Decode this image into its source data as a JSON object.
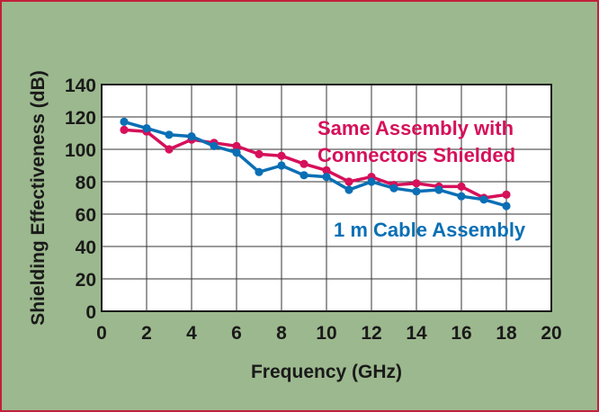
{
  "chart_data": {
    "type": "line",
    "xlabel": "Frequency (GHz)",
    "ylabel": "Shielding Effectiveness (dB)",
    "xlim": [
      0,
      20
    ],
    "ylim": [
      0,
      140
    ],
    "xticks": [
      0,
      2,
      4,
      6,
      8,
      10,
      12,
      14,
      16,
      18,
      20
    ],
    "yticks": [
      0,
      20,
      40,
      60,
      80,
      100,
      120,
      140
    ],
    "grid": true,
    "legend": "none",
    "series": [
      {
        "name": "Same Assembly with Connectors Shielded",
        "color": "#d6105a",
        "x": [
          1,
          2,
          3,
          4,
          5,
          6,
          7,
          8,
          9,
          10,
          11,
          12,
          13,
          14,
          15,
          16,
          17,
          18
        ],
        "y": [
          112,
          111,
          100,
          106,
          104,
          102,
          97,
          96,
          91,
          87,
          80,
          83,
          78,
          79,
          77,
          77,
          70,
          72
        ]
      },
      {
        "name": "1 m Cable Assembly",
        "color": "#0a6fb5",
        "x": [
          1,
          2,
          3,
          4,
          5,
          6,
          7,
          8,
          9,
          10,
          11,
          12,
          13,
          14,
          15,
          16,
          17,
          18
        ],
        "y": [
          117,
          113,
          109,
          108,
          102,
          98,
          86,
          90,
          84,
          83,
          75,
          80,
          76,
          74,
          75,
          71,
          69,
          65
        ]
      }
    ],
    "annotations": [
      {
        "text": "Same Assembly with",
        "series": 0
      },
      {
        "text": "Connectors Shielded",
        "series": 0
      },
      {
        "text": "1 m Cable Assembly",
        "series": 1
      }
    ]
  }
}
